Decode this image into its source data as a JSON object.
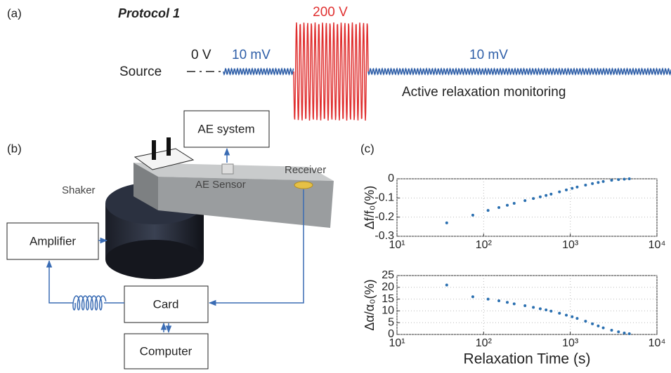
{
  "panel_a": {
    "label": "(a)",
    "title": "Protocol 1",
    "source_label": "Source",
    "zero_label": "0 V",
    "low_label_1": "10 mV",
    "high_label": "200 V",
    "low_label_2": "10 mV",
    "caption": "Active relaxation monitoring"
  },
  "panel_b": {
    "label": "(b)",
    "ae_system": "AE system",
    "ae_sensor": "AE Sensor",
    "receiver": "Receiver",
    "shaker": "Shaker",
    "amplifier": "Amplifier",
    "card": "Card",
    "computer": "Computer"
  },
  "panel_c": {
    "label": "(c)"
  },
  "chart_data": [
    {
      "type": "scatter",
      "ylabel": "Δf/f₀(%)",
      "xscale": "log",
      "grid": true,
      "color": "#2a6fb0",
      "xlim": [
        10,
        10000
      ],
      "xticks": [
        {
          "value": 10,
          "label": "10¹"
        },
        {
          "value": 100,
          "label": "10²"
        },
        {
          "value": 1000,
          "label": "10³"
        },
        {
          "value": 10000,
          "label": "10⁴"
        }
      ],
      "ylim": [
        -0.3,
        0
      ],
      "yticks": [
        -0.3,
        -0.2,
        -0.1,
        0
      ],
      "x": [
        37.5,
        75,
        112.5,
        150,
        187.5,
        225,
        300,
        375,
        450,
        525,
        600,
        750,
        900,
        1050,
        1200,
        1500,
        1800,
        2100,
        2400,
        3000,
        3600,
        4200,
        4800
      ],
      "values": [
        -0.23,
        -0.19,
        -0.165,
        -0.15,
        -0.138,
        -0.128,
        -0.114,
        -0.103,
        -0.094,
        -0.087,
        -0.08,
        -0.068,
        -0.058,
        -0.05,
        -0.043,
        -0.033,
        -0.025,
        -0.019,
        -0.014,
        -0.008,
        -0.004,
        -0.002,
        0
      ]
    },
    {
      "type": "scatter",
      "ylabel": "Δα/α₀(%)",
      "xlabel": "Relaxation Time (s)",
      "xscale": "log",
      "grid": true,
      "color": "#2a6fb0",
      "xlim": [
        10,
        10000
      ],
      "xticks": [
        {
          "value": 10,
          "label": "10¹"
        },
        {
          "value": 100,
          "label": "10²"
        },
        {
          "value": 1000,
          "label": "10³"
        },
        {
          "value": 10000,
          "label": "10⁴"
        }
      ],
      "ylim": [
        0,
        25
      ],
      "yticks": [
        0,
        5,
        10,
        15,
        20,
        25
      ],
      "x": [
        37.5,
        75,
        112.5,
        150,
        187.5,
        225,
        300,
        375,
        450,
        525,
        600,
        750,
        900,
        1050,
        1200,
        1500,
        1800,
        2100,
        2400,
        3000,
        3600,
        4200,
        4800
      ],
      "values": [
        21,
        16,
        15,
        14.3,
        13.6,
        13,
        12.2,
        11.5,
        10.9,
        10.4,
        9.9,
        9.0,
        8.2,
        7.5,
        6.8,
        5.6,
        4.5,
        3.6,
        2.8,
        1.8,
        1.1,
        0.6,
        0.3
      ]
    }
  ]
}
